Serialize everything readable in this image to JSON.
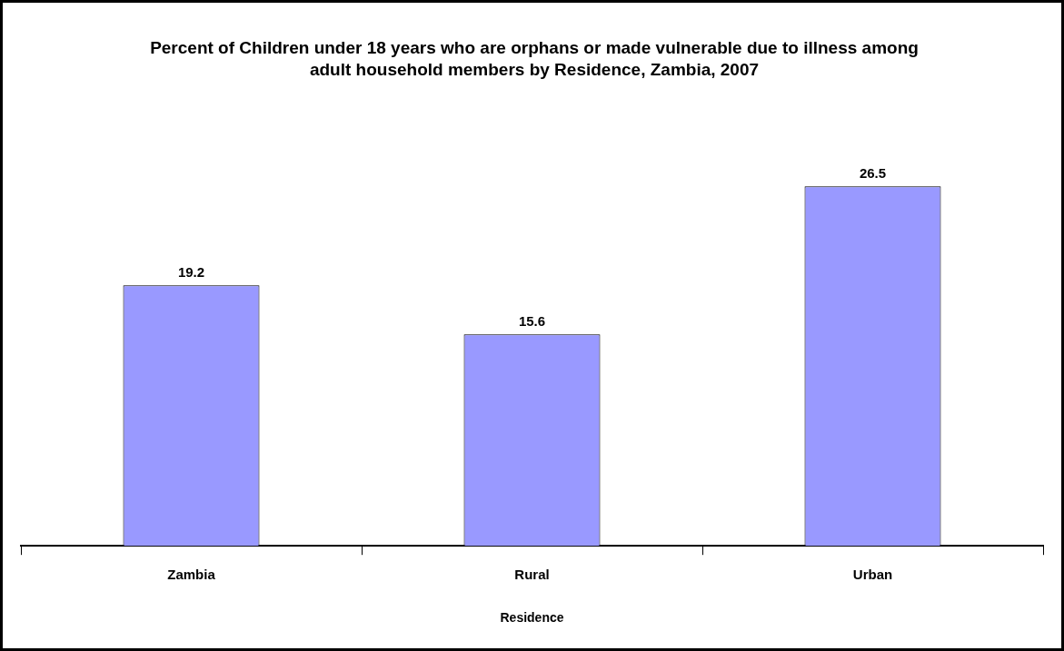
{
  "chart_data": {
    "type": "bar",
    "title": "Percent of Children under 18 years who are orphans or made vulnerable due to illness among adult household members by Residence, Zambia, 2007",
    "xlabel": "Residence",
    "categories": [
      "Zambia",
      "Rural",
      "Urban"
    ],
    "values": [
      19.2,
      15.6,
      26.5
    ],
    "color": "#9999ff",
    "data_labels": true,
    "grid": false,
    "legend": false
  }
}
